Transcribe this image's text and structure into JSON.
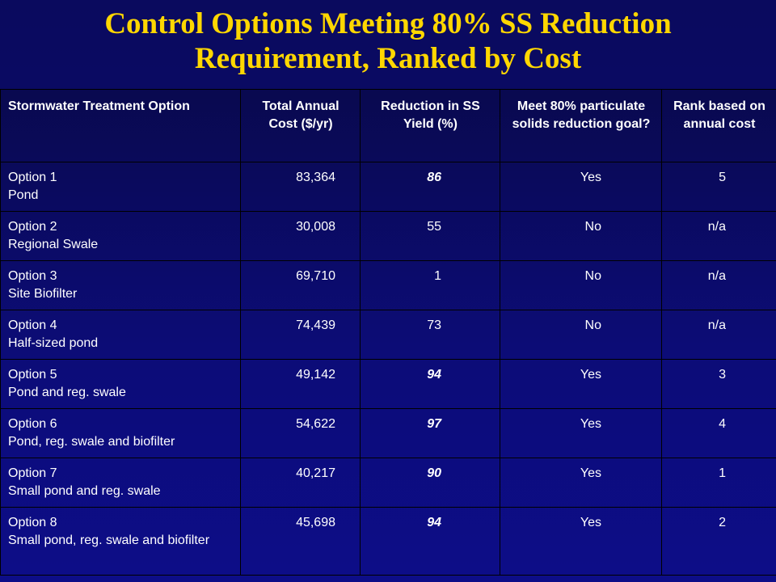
{
  "title": {
    "line1": "Control Options Meeting 80% SS Reduction",
    "line2": "Requirement, Ranked by Cost"
  },
  "table": {
    "headers": [
      "Stormwater Treatment Option",
      "Total Annual Cost ($/yr)",
      "Reduction in SS Yield (%)",
      "Meet 80% particulate solids reduction goal?",
      "Rank based on annual cost"
    ],
    "rows": [
      {
        "option": "Option 1",
        "desc": "Pond",
        "cost": "83,364",
        "reduction": "86",
        "meets": "Yes",
        "rank": "5",
        "emph": true
      },
      {
        "option": "Option 2",
        "desc": "Regional Swale",
        "cost": "30,008",
        "reduction": "55",
        "meets": "No",
        "rank": "n/a",
        "emph": false
      },
      {
        "option": "Option 3",
        "desc": "Site Biofilter",
        "cost": "69,710",
        "reduction": "1",
        "meets": "No",
        "rank": "n/a",
        "emph": false
      },
      {
        "option": "Option 4",
        "desc": "Half-sized pond",
        "cost": "74,439",
        "reduction": "73",
        "meets": "No",
        "rank": "n/a",
        "emph": false
      },
      {
        "option": "Option 5",
        "desc": "Pond and reg. swale",
        "cost": "49,142",
        "reduction": "94",
        "meets": "Yes",
        "rank": "3",
        "emph": true
      },
      {
        "option": "Option 6",
        "desc": "Pond, reg. swale and biofilter",
        "cost": "54,622",
        "reduction": "97",
        "meets": "Yes",
        "rank": "4",
        "emph": true
      },
      {
        "option": "Option 7",
        "desc": "Small pond and reg. swale",
        "cost": "40,217",
        "reduction": "90",
        "meets": "Yes",
        "rank": "1",
        "emph": true
      },
      {
        "option": "Option 8",
        "desc": "Small pond, reg. swale and biofilter",
        "cost": "45,698",
        "reduction": "94",
        "meets": "Yes",
        "rank": "2",
        "emph": true
      }
    ]
  },
  "colors": {
    "title": "#ffd700",
    "background": "#0b0b6a",
    "text": "#ffffff"
  }
}
